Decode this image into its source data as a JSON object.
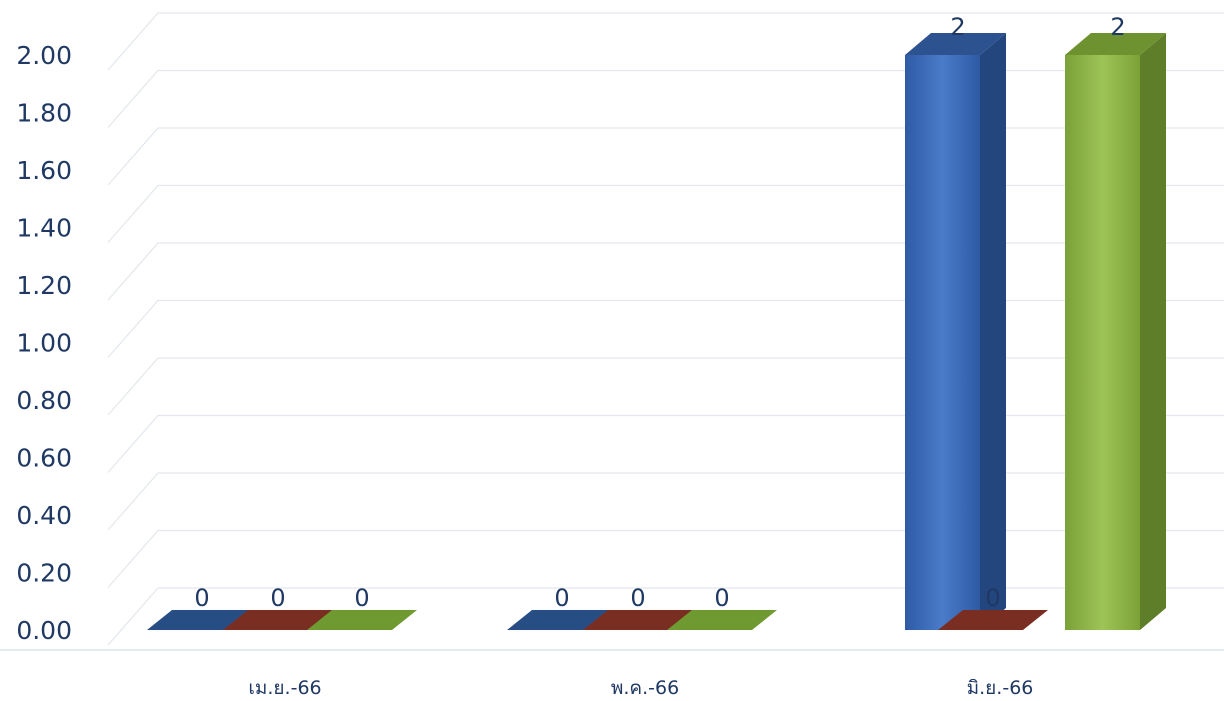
{
  "chart_data": {
    "type": "bar",
    "title": "",
    "xlabel": "",
    "ylabel": "",
    "categories": [
      "เม.ย.-66",
      "พ.ค.-66",
      "มิ.ย.-66"
    ],
    "series": [
      {
        "values": [
          0,
          0,
          2
        ],
        "color": "#3a68b5"
      },
      {
        "values": [
          0,
          0,
          0
        ],
        "color": "#9a3a2c"
      },
      {
        "values": [
          0,
          0,
          2
        ],
        "color": "#86ad3e"
      }
    ],
    "ylim": [
      0,
      2.0
    ],
    "yticks": [
      "0.00",
      "0.20",
      "0.40",
      "0.60",
      "0.80",
      "1.00",
      "1.20",
      "1.40",
      "1.60",
      "1.80",
      "2.00"
    ],
    "grid": true,
    "legend": "none",
    "style": "3d-columns",
    "data_labels": [
      [
        "0",
        "0",
        "0"
      ],
      [
        "0",
        "0",
        "0"
      ],
      [
        "2",
        "0",
        "2"
      ]
    ]
  }
}
